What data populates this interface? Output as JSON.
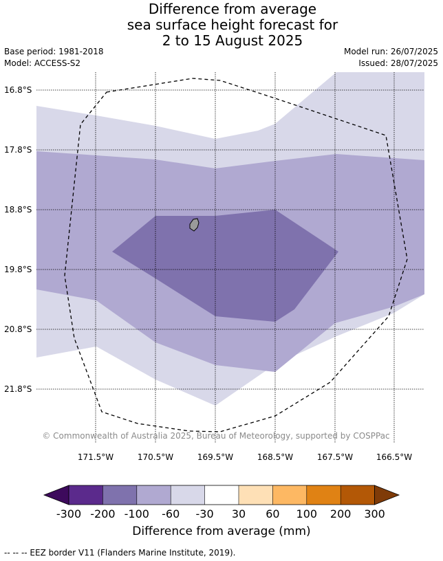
{
  "title": [
    "Difference from average",
    "sea surface height forecast for",
    "2 to 15 August 2025"
  ],
  "base_period": "Base period: 1981-2018",
  "model": "Model: ACCESS-S2",
  "model_run": "Model run: 26/07/2025",
  "issued": "Issued: 28/07/2025",
  "lat_labels": [
    "16.8°S",
    "17.8°S",
    "18.8°S",
    "19.8°S",
    "20.8°S",
    "21.8°S"
  ],
  "lon_labels": [
    "171.5°W",
    "170.5°W",
    "169.5°W",
    "168.5°W",
    "167.5°W",
    "166.5°W"
  ],
  "copyright": "© Commonwealth of Australia 2025, Bureau of Meteorology, supported by COSPPac",
  "colorbar": {
    "label": "Difference from average (mm)",
    "ticks": [
      "-300",
      "-200",
      "-100",
      "-60",
      "-30",
      "30",
      "60",
      "100",
      "200",
      "300"
    ],
    "colors": [
      "#3d0a5c",
      "#5b2a8c",
      "#7f72ad",
      "#b0a9d1",
      "#d8d8e9",
      "#ffffff",
      "#fee0b6",
      "#fdb863",
      "#e08214",
      "#b35806",
      "#7f3b08"
    ]
  },
  "legend_note": "--  --  -- EEZ border V11 (Flanders Marine Institute, 2019).",
  "map_layers": [
    {
      "range": "-30 to -60",
      "color": "#d8d8e9"
    },
    {
      "range": "-60 to -100",
      "color": "#b0a9d1"
    },
    {
      "range": "-100 to -200",
      "color": "#7f72ad"
    }
  ]
}
